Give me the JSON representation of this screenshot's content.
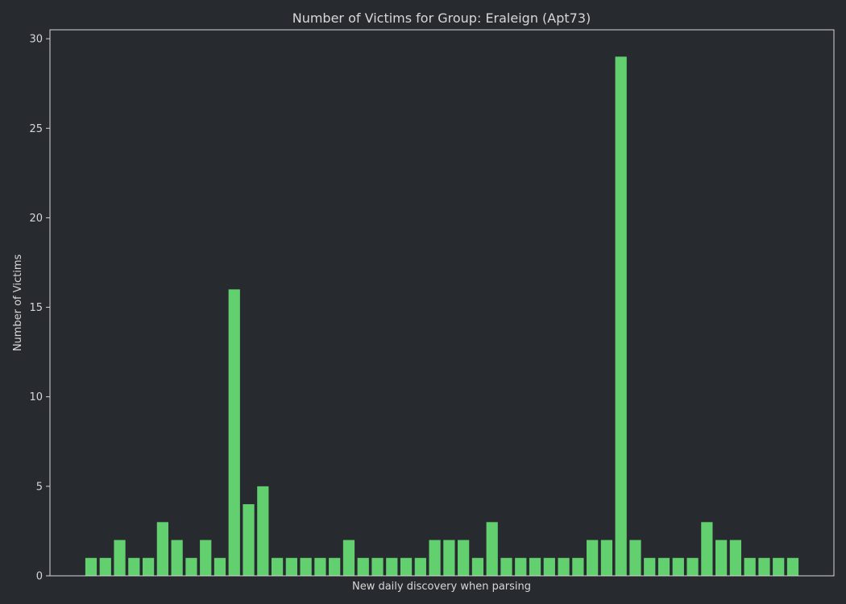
{
  "chart_data": {
    "type": "bar",
    "title": "Number of Victims for Group: Eraleign (Apt73)",
    "xlabel": "New daily discovery when parsing",
    "ylabel": "Number of Victims",
    "ylim": [
      0,
      30.5
    ],
    "yticks": [
      0,
      5,
      10,
      15,
      20,
      25,
      30
    ],
    "x_tick_labels_visible": false,
    "grid": false,
    "legend": "none",
    "values": [
      1,
      1,
      2,
      1,
      1,
      3,
      2,
      1,
      2,
      1,
      16,
      4,
      5,
      1,
      1,
      1,
      1,
      1,
      2,
      1,
      1,
      1,
      1,
      1,
      2,
      2,
      2,
      1,
      3,
      1,
      1,
      1,
      1,
      1,
      1,
      2,
      2,
      29,
      2,
      1,
      1,
      1,
      1,
      3,
      2,
      2,
      1,
      1,
      1,
      1
    ],
    "colors": {
      "bar": "#63d06f",
      "background": "#272a2f",
      "axis": "#d7d7d7",
      "text": "#d7d7d7"
    }
  }
}
